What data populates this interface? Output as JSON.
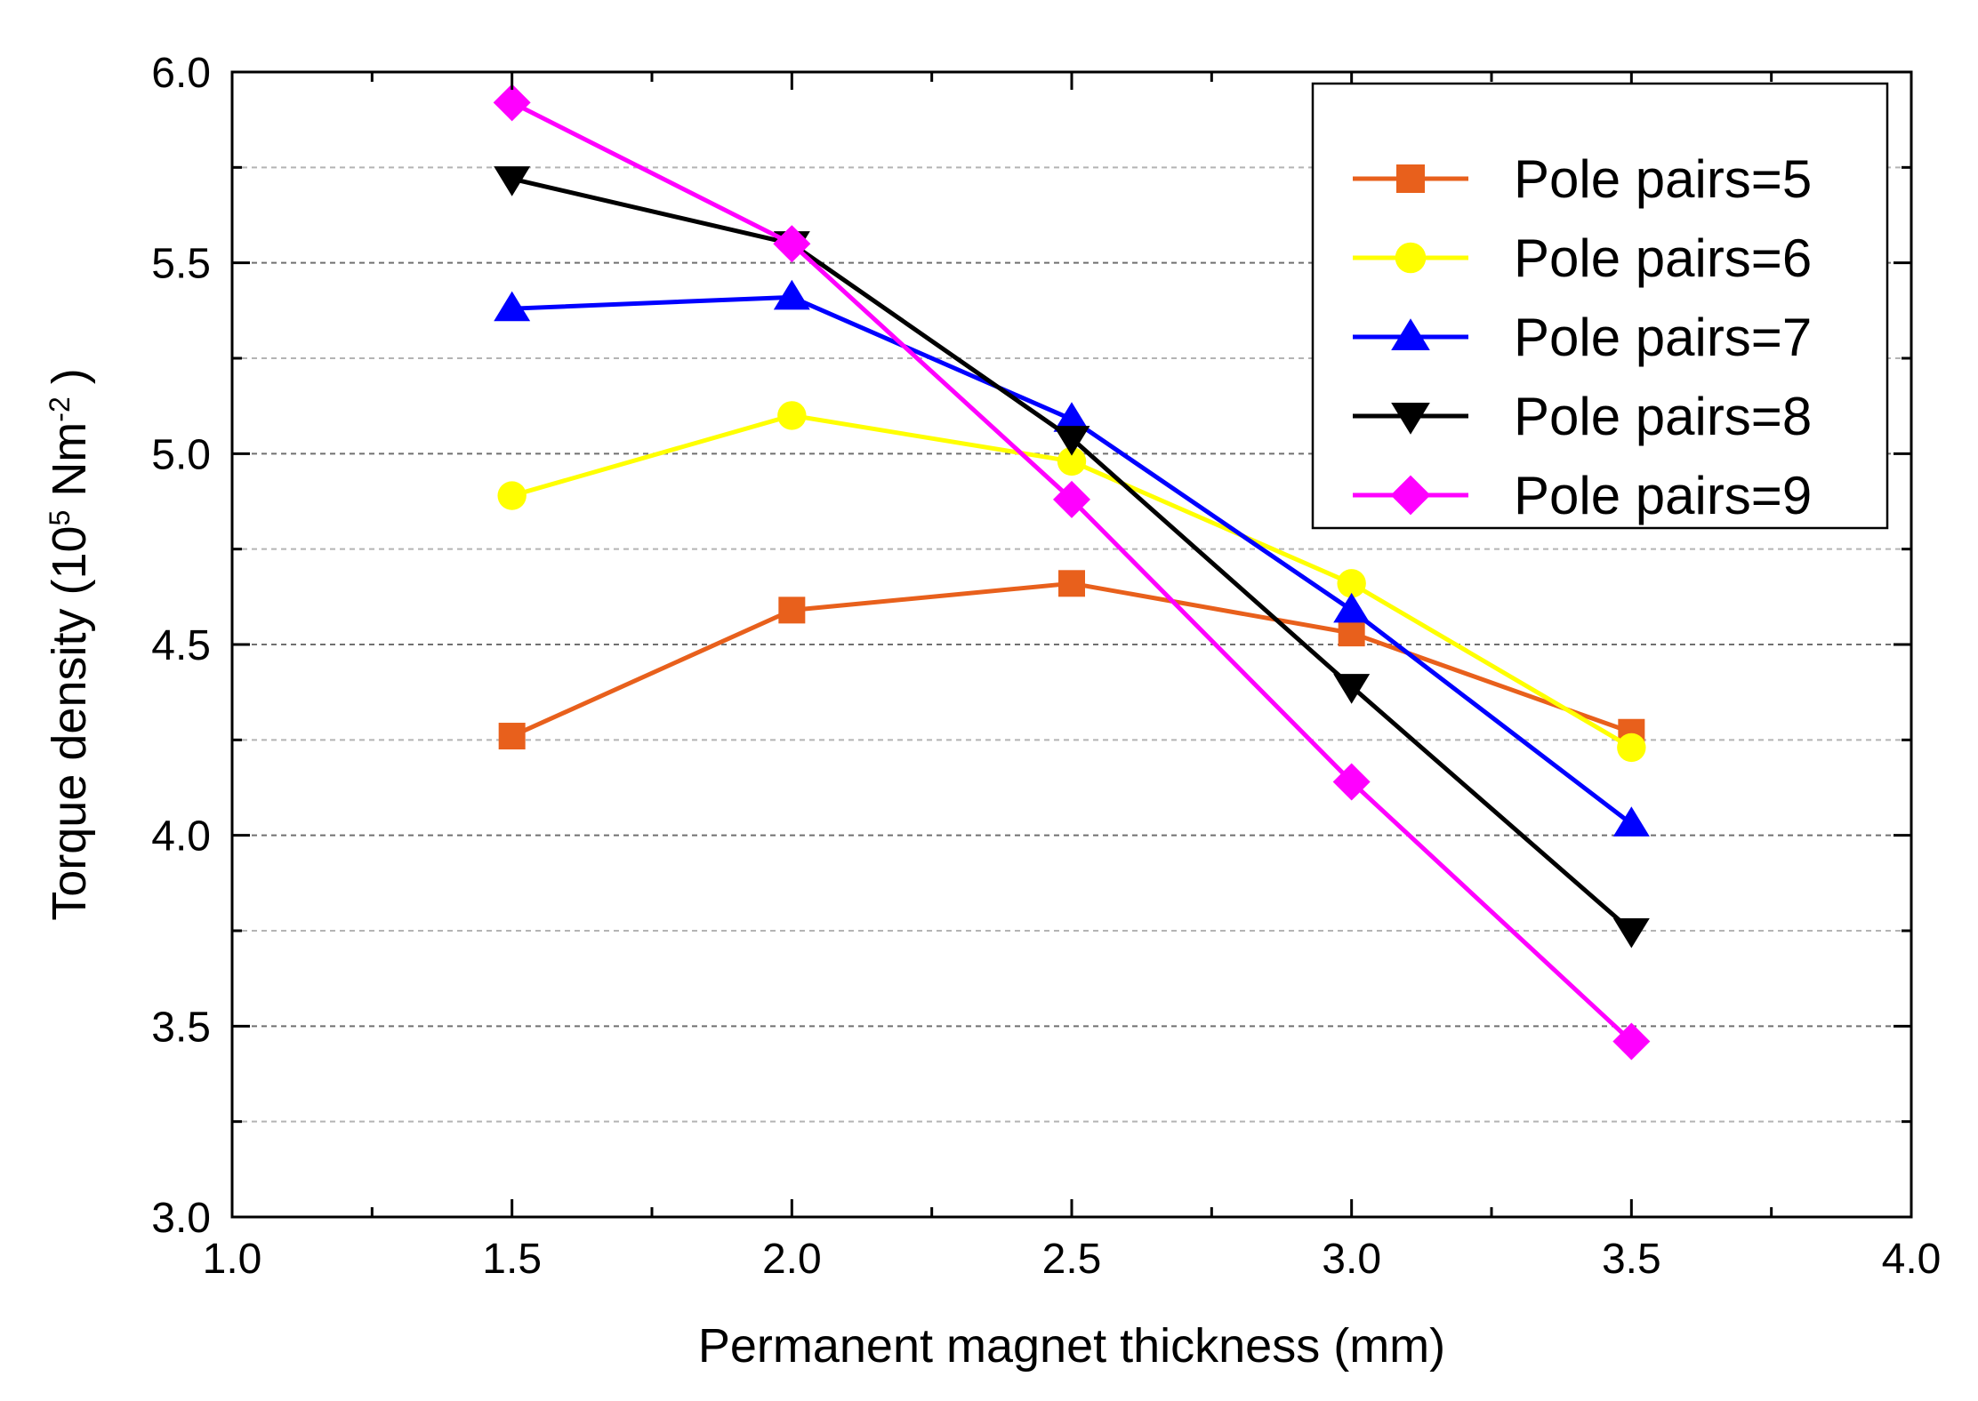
{
  "chart_data": {
    "type": "line",
    "xlabel": "Permanent magnet thickness (mm)",
    "ylabel": {
      "prefix": "Torque density (10",
      "sup1": "5",
      "mid": " Nm",
      "sup2": "-2",
      "suffix": ")"
    },
    "xlim": [
      1.0,
      4.0
    ],
    "ylim": [
      3.0,
      6.0
    ],
    "xticks": [
      "1.0",
      "1.5",
      "2.0",
      "2.5",
      "3.0",
      "3.5",
      "4.0"
    ],
    "yticks": [
      "3.0",
      "3.5",
      "4.0",
      "4.5",
      "5.0",
      "5.5",
      "6.0"
    ],
    "grid": "horizontal dashed",
    "legend_position": "top-right",
    "x": [
      1.5,
      2.0,
      2.5,
      3.0,
      3.5
    ],
    "series": [
      {
        "name": "Pole pairs=5",
        "color": "#e8601c",
        "marker": "square",
        "values": [
          4.26,
          4.59,
          4.66,
          4.53,
          4.27
        ]
      },
      {
        "name": "Pole pairs=6",
        "color": "#ffff00",
        "marker": "circle",
        "values": [
          4.89,
          5.1,
          4.98,
          4.66,
          4.23
        ]
      },
      {
        "name": "Pole pairs=7",
        "color": "#0000ff",
        "marker": "triangle-up",
        "values": [
          5.38,
          5.41,
          5.09,
          4.59,
          4.03
        ]
      },
      {
        "name": "Pole pairs=8",
        "color": "#000000",
        "marker": "triangle-down",
        "values": [
          5.72,
          5.55,
          5.04,
          4.39,
          3.75
        ]
      },
      {
        "name": "Pole pairs=9",
        "color": "#ff00ff",
        "marker": "diamond",
        "values": [
          5.92,
          5.55,
          4.88,
          4.14,
          3.46
        ]
      }
    ]
  }
}
